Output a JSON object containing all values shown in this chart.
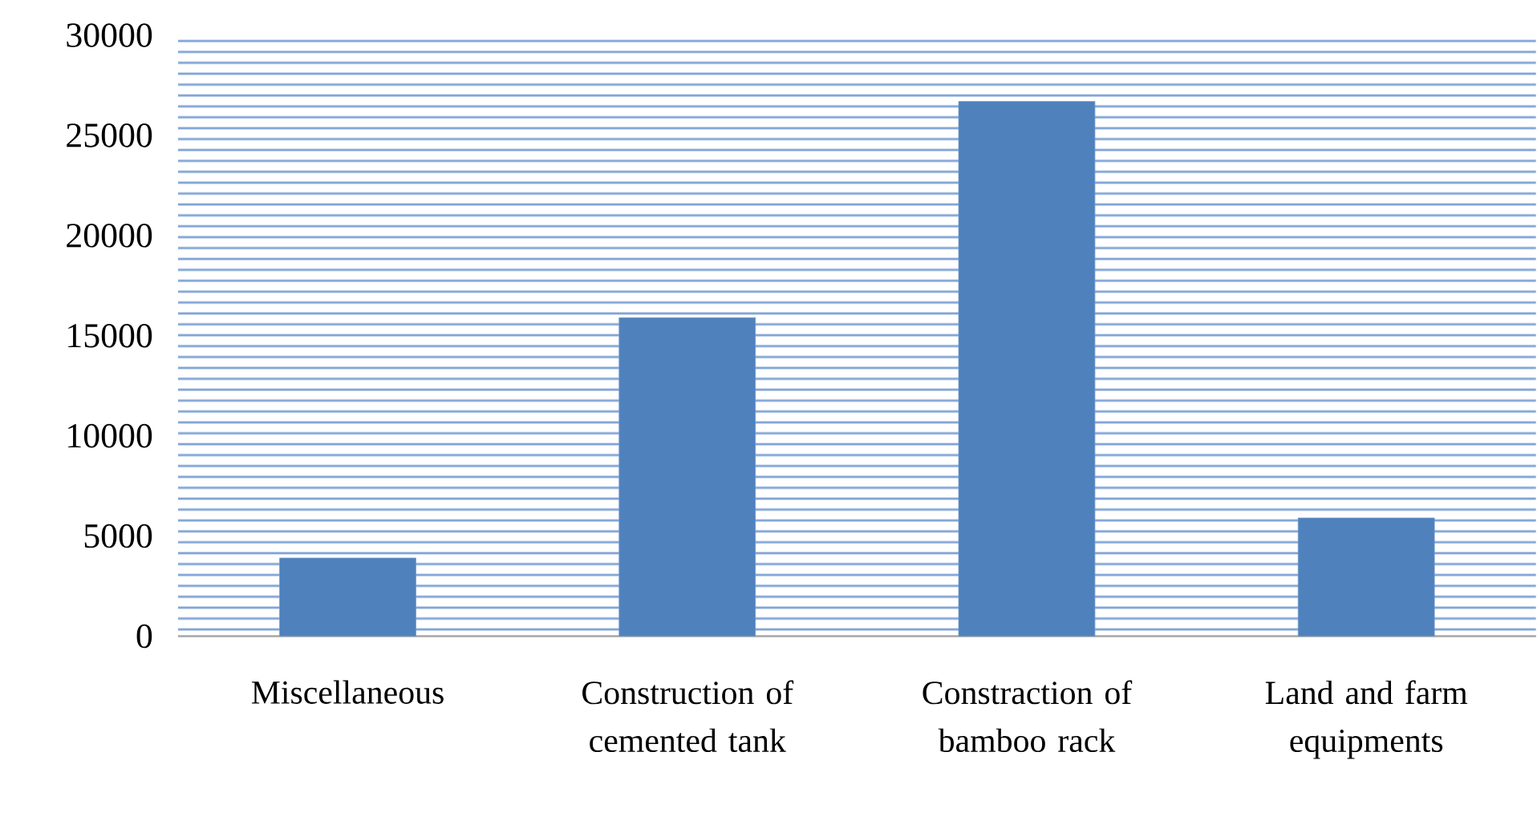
{
  "chart_data": {
    "type": "bar",
    "categories": [
      "Miscellaneous",
      "Construction of cemented tank",
      "Constraction of bamboo rack",
      "Land and farm equipments"
    ],
    "values": [
      3900,
      15900,
      26700,
      5900
    ],
    "color": "#4f81bd",
    "ylim": [
      0,
      30000
    ],
    "yticks": [
      0,
      5000,
      10000,
      15000,
      20000,
      25000,
      30000
    ]
  }
}
